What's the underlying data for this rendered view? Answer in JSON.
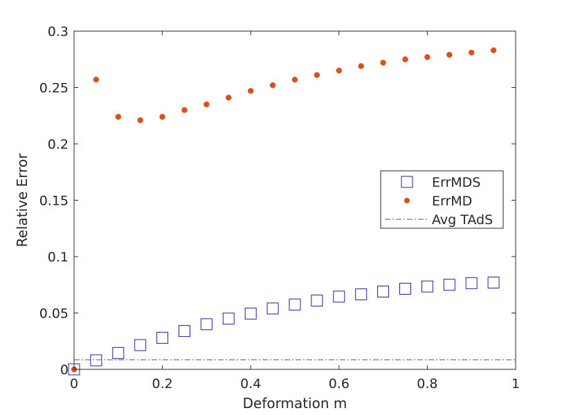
{
  "chart_data": {
    "type": "scatter",
    "title": "",
    "xlabel": "Deformation m",
    "ylabel": "Relative Error",
    "xlim": [
      0,
      1
    ],
    "ylim": [
      0,
      0.3
    ],
    "xticks": [
      0,
      0.2,
      0.4,
      0.6,
      0.8,
      1
    ],
    "xtick_labels": [
      "0",
      "0.2",
      "0.4",
      "0.6",
      "0.8",
      "1"
    ],
    "yticks": [
      0,
      0.05,
      0.1,
      0.15,
      0.2,
      0.25,
      0.3
    ],
    "ytick_labels": [
      "0",
      "0.05",
      "0.1",
      "0.15",
      "0.2",
      "0.25",
      "0.3"
    ],
    "grid": false,
    "legend_position": "right",
    "x": [
      0,
      0.05,
      0.1,
      0.15,
      0.2,
      0.25,
      0.3,
      0.35,
      0.4,
      0.45,
      0.5,
      0.55,
      0.6,
      0.65,
      0.7,
      0.75,
      0.8,
      0.85,
      0.9,
      0.95
    ],
    "series": [
      {
        "name": "ErrMDS",
        "marker": "open-square",
        "color": "#1f1fa0",
        "values": [
          0,
          0.008,
          0.0145,
          0.0215,
          0.028,
          0.034,
          0.04,
          0.045,
          0.0495,
          0.054,
          0.0575,
          0.061,
          0.0645,
          0.0665,
          0.069,
          0.0715,
          0.0735,
          0.075,
          0.0765,
          0.077
        ]
      },
      {
        "name": "ErrMD",
        "marker": "filled-dot",
        "color": "#d95319",
        "values": [
          0,
          0.257,
          0.224,
          0.221,
          0.224,
          0.23,
          0.235,
          0.241,
          0.247,
          0.252,
          0.257,
          0.261,
          0.265,
          0.269,
          0.272,
          0.275,
          0.277,
          0.279,
          0.281,
          0.283
        ]
      },
      {
        "name": "Avg TAdS",
        "marker": "dash-dot-line",
        "color": "#555555",
        "values": [
          0.0085,
          0.0085
        ]
      }
    ]
  }
}
